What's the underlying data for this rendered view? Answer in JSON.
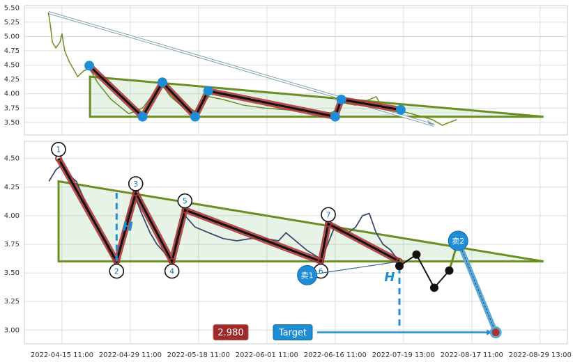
{
  "chart_data": [
    {
      "type": "line",
      "xlim": [
        -0.55,
        7.4
      ],
      "ylim": [
        3.28,
        5.54
      ],
      "xticks": [
        0,
        1,
        2,
        3,
        4,
        5,
        6,
        7
      ],
      "yticks": [
        {
          "value": 3.5,
          "label": "3.50"
        },
        {
          "value": 3.75,
          "label": "3.75"
        },
        {
          "value": 4,
          "label": "4.00"
        },
        {
          "value": 4.25,
          "label": "4.25"
        },
        {
          "value": 4.5,
          "label": "4.50"
        },
        {
          "value": 4.75,
          "label": "4.75"
        },
        {
          "value": 5,
          "label": "5.00"
        },
        {
          "value": 5.25,
          "label": "5.25"
        },
        {
          "value": 5.5,
          "label": "5.50"
        }
      ],
      "grid": true,
      "price": {
        "color": "#6b8e23",
        "x": [
          -0.2,
          -0.17,
          -0.14,
          -0.09,
          -0.03,
          0,
          0.04,
          0.11,
          0.16,
          0.23,
          0.32,
          0.4,
          0.52,
          0.72,
          0.98,
          1.18,
          1.34,
          1.47,
          1.59,
          1.74,
          1.95,
          2.15,
          2.36,
          2.66,
          2.97,
          3.28,
          3.58,
          3.89,
          4.0,
          4.09,
          4.3,
          4.6,
          4.7,
          4.96,
          5.21,
          5.42,
          5.57,
          5.67,
          5.78
        ],
        "values": [
          5.42,
          5.2,
          4.9,
          4.8,
          4.9,
          5.05,
          4.75,
          4.55,
          4.45,
          4.3,
          4.4,
          4.45,
          4.2,
          3.9,
          3.65,
          3.75,
          4.0,
          4.15,
          3.95,
          3.8,
          3.7,
          3.95,
          3.9,
          3.8,
          3.75,
          3.72,
          3.7,
          3.65,
          3.7,
          3.85,
          3.8,
          3.95,
          3.75,
          3.7,
          3.62,
          3.55,
          3.45,
          3.5,
          3.55
        ]
      },
      "pattern": {
        "color": "#a83232",
        "marker_color": "#1f8dd6",
        "x": [
          0.4,
          1.18,
          1.47,
          1.95,
          2.14,
          4.0,
          4.09,
          4.96
        ],
        "values": [
          4.49,
          3.6,
          4.2,
          3.6,
          4.05,
          3.6,
          3.9,
          3.72
        ]
      },
      "triangle": {
        "color": "#6b8e23",
        "x": [
          0.41,
          7.05,
          0.41
        ],
        "values": [
          4.3,
          3.6,
          3.6
        ]
      },
      "trendline": {
        "color": "#7f9fa8",
        "x": [
          -0.2,
          5.45
        ],
        "values": [
          5.42,
          3.45
        ]
      }
    },
    {
      "type": "line",
      "xlim": [
        -0.55,
        7.4
      ],
      "ylim": [
        2.88,
        4.65
      ],
      "xticks": [
        {
          "value": 0,
          "label": "2022-04-15 11:00"
        },
        {
          "value": 1,
          "label": "2022-04-29 11:00"
        },
        {
          "value": 2,
          "label": "2022-05-18 11:00"
        },
        {
          "value": 3,
          "label": "2022-06-01 11:00"
        },
        {
          "value": 4,
          "label": "2022-06-16 11:00"
        },
        {
          "value": 5,
          "label": "2022-07-19 13:00"
        },
        {
          "value": 6,
          "label": "2022-08-17 11:00"
        },
        {
          "value": 7,
          "label": "2022-08-29 13:00"
        }
      ],
      "yticks": [
        {
          "value": 3,
          "label": "3.00"
        },
        {
          "value": 3.25,
          "label": "3.25"
        },
        {
          "value": 3.5,
          "label": "3.50"
        },
        {
          "value": 3.75,
          "label": "3.75"
        },
        {
          "value": 4,
          "label": "4.00"
        },
        {
          "value": 4.25,
          "label": "4.25"
        },
        {
          "value": 4.5,
          "label": "4.50"
        }
      ],
      "grid": true,
      "price": {
        "color": "#3d4a6b",
        "x": [
          -0.19,
          -0.09,
          0.01,
          0.11,
          0.21,
          0.32,
          0.42,
          0.52,
          0.62,
          0.72,
          0.8,
          0.88,
          0.98,
          1.08,
          1.18,
          1.29,
          1.39,
          1.54,
          1.61,
          1.69,
          1.8,
          1.95,
          2.15,
          2.36,
          2.56,
          2.77,
          2.97,
          3.17,
          3.28,
          3.38,
          3.58,
          3.79,
          3.89,
          3.99,
          4.09,
          4.19,
          4.3,
          4.4,
          4.5,
          4.6,
          4.7,
          4.81,
          4.91
        ],
        "values": [
          4.3,
          4.4,
          4.45,
          4.35,
          4.3,
          4.15,
          4.0,
          3.9,
          3.8,
          3.65,
          3.6,
          3.8,
          4.05,
          4.15,
          4.0,
          3.85,
          3.75,
          3.65,
          3.6,
          3.85,
          4.0,
          3.9,
          3.85,
          3.8,
          3.78,
          3.8,
          3.8,
          3.78,
          3.85,
          3.8,
          3.7,
          3.62,
          3.75,
          3.9,
          3.85,
          3.85,
          3.9,
          4.0,
          4.02,
          3.85,
          3.75,
          3.7,
          3.62
        ]
      },
      "pattern": {
        "color": "#a83232",
        "x": [
          -0.05,
          0.8,
          1.08,
          1.61,
          1.8,
          3.79,
          3.9,
          4.94
        ],
        "values": [
          4.5,
          3.6,
          4.2,
          3.6,
          4.05,
          3.6,
          3.93,
          3.6
        ],
        "labels": [
          "1",
          "2",
          "3",
          "4",
          "5",
          "6",
          "7",
          null
        ]
      },
      "triangle": {
        "color": "#6b8e23",
        "x": [
          -0.05,
          7.05,
          -0.05
        ],
        "values": [
          4.3,
          3.6,
          3.6
        ]
      },
      "projection": {
        "color": "#111111",
        "x": [
          4.94,
          5.19,
          5.45,
          5.67
        ],
        "values": [
          3.56,
          3.66,
          3.37,
          3.52
        ]
      },
      "sell_points": [
        {
          "label": "卖1",
          "x": 3.59,
          "y": 3.48
        },
        {
          "label": "卖2",
          "x": 5.8,
          "y": 3.78
        }
      ],
      "target": {
        "x": 6.35,
        "y": 2.98,
        "price_label": "2.980",
        "label": "Target"
      },
      "height_markers": [
        {
          "label": "H",
          "x": 0.8,
          "from": 3.6,
          "to": 4.2
        },
        {
          "label": "H",
          "x": 4.94,
          "from": 3.55,
          "to": 3.0
        }
      ]
    }
  ]
}
